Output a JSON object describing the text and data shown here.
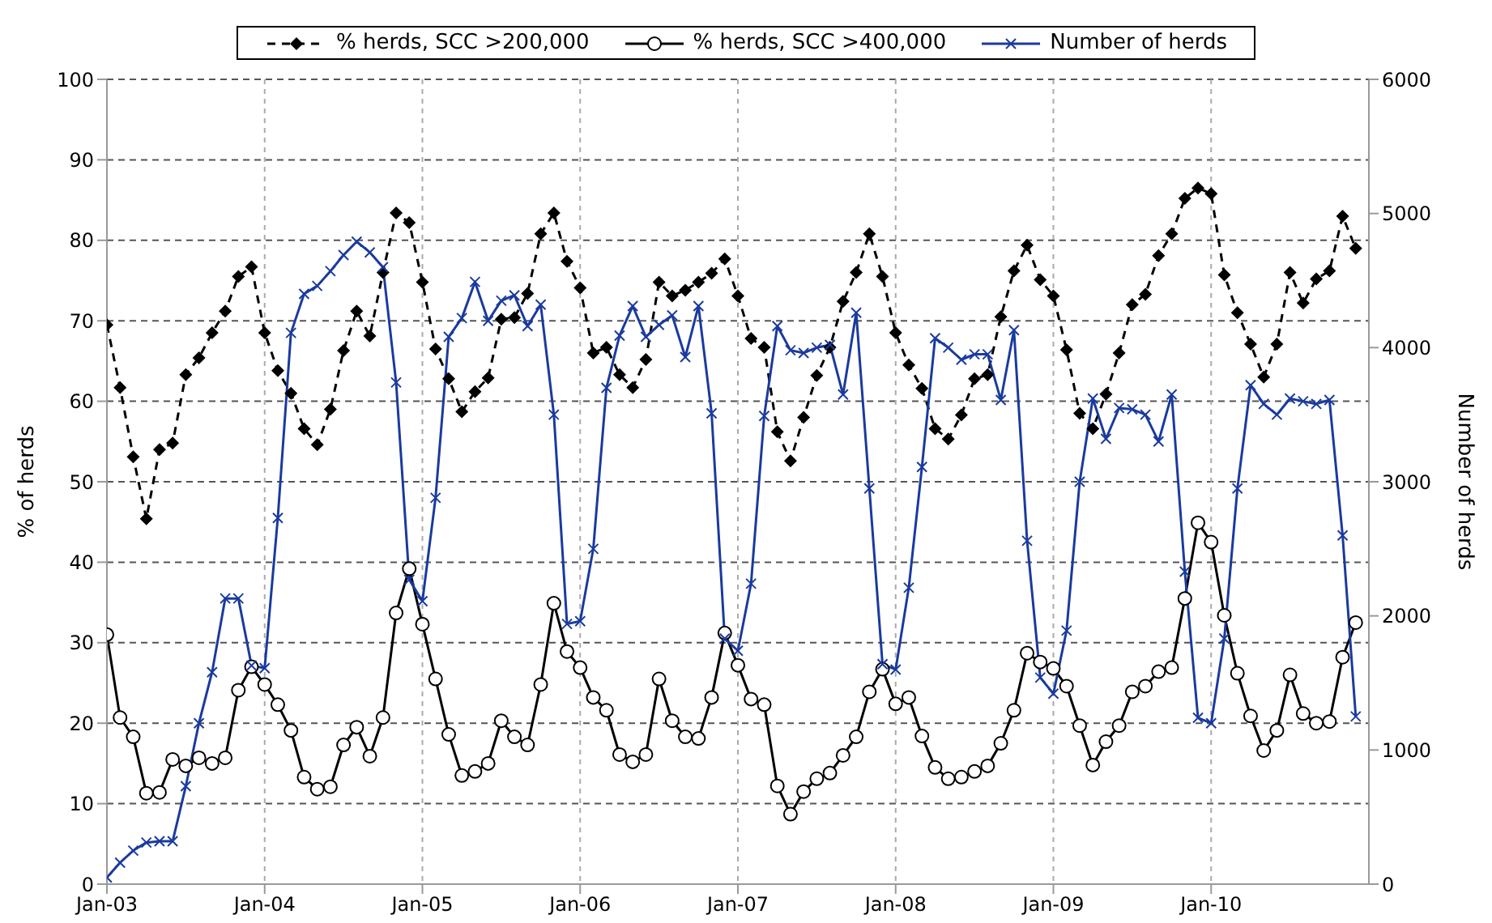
{
  "chart_data": {
    "type": "line",
    "ylabel": "% of herds",
    "y2label": "Number of herds",
    "x": [
      "2003-01",
      "2003-02",
      "2003-03",
      "2003-04",
      "2003-05",
      "2003-06",
      "2003-07",
      "2003-08",
      "2003-09",
      "2003-10",
      "2003-11",
      "2003-12",
      "2004-01",
      "2004-02",
      "2004-03",
      "2004-04",
      "2004-05",
      "2004-06",
      "2004-07",
      "2004-08",
      "2004-09",
      "2004-10",
      "2004-11",
      "2004-12",
      "2005-01",
      "2005-02",
      "2005-03",
      "2005-04",
      "2005-05",
      "2005-06",
      "2005-07",
      "2005-08",
      "2005-09",
      "2005-10",
      "2005-11",
      "2005-12",
      "2006-01",
      "2006-02",
      "2006-03",
      "2006-04",
      "2006-05",
      "2006-06",
      "2006-07",
      "2006-08",
      "2006-09",
      "2006-10",
      "2006-11",
      "2006-12",
      "2007-01",
      "2007-02",
      "2007-03",
      "2007-04",
      "2007-05",
      "2007-06",
      "2007-07",
      "2007-08",
      "2007-09",
      "2007-10",
      "2007-11",
      "2007-12",
      "2008-01",
      "2008-02",
      "2008-03",
      "2008-04",
      "2008-05",
      "2008-06",
      "2008-07",
      "2008-08",
      "2008-09",
      "2008-10",
      "2008-11",
      "2008-12",
      "2009-01",
      "2009-02",
      "2009-03",
      "2009-04",
      "2009-05",
      "2009-06",
      "2009-07",
      "2009-08",
      "2009-09",
      "2009-10",
      "2009-11",
      "2009-12",
      "2010-01",
      "2010-02",
      "2010-03",
      "2010-04",
      "2010-05",
      "2010-06",
      "2010-07",
      "2010-08",
      "2010-09",
      "2010-10",
      "2010-11",
      "2010-12"
    ],
    "series": [
      {
        "name": "% herds, SCC >200,000",
        "color": "#000000",
        "marker": "diamond",
        "line_style": "dashed",
        "values": [
          69.5,
          61.7,
          53.1,
          45.4,
          54,
          54.8,
          63.3,
          65.4,
          68.5,
          71.2,
          75.5,
          76.7,
          68.5,
          63.8,
          61,
          56.6,
          54.6,
          59,
          66.3,
          71.2,
          68.1,
          76,
          83.4,
          82.2,
          74.8,
          66.5,
          62.8,
          58.7,
          61.2,
          62.9,
          70.2,
          70.4,
          73.4,
          80.8,
          83.4,
          77.4,
          74.1,
          66,
          66.7,
          63.3,
          61.7,
          65.2,
          74.8,
          73.1,
          73.8,
          74.8,
          75.9,
          77.7,
          73.1,
          67.8,
          66.7,
          56.2,
          52.6,
          58,
          63.2,
          66.7,
          72.4,
          76,
          80.8,
          75.5,
          68.5,
          64.5,
          61.6,
          56.6,
          55.3,
          58.3,
          62.8,
          63.3,
          70.5,
          76.2,
          79.4,
          75.1,
          73.1,
          66.4,
          58.5,
          56.6,
          60.9,
          66,
          72,
          73.3,
          78.1,
          80.8,
          85.2,
          86.5,
          85.8,
          75.7,
          71,
          67.1,
          63,
          67.1,
          76,
          72.2,
          75.2,
          76.2,
          83,
          79
        ]
      },
      {
        "name": "% herds, SCC >400,000",
        "color": "#000000",
        "marker": "circle",
        "line_style": "solid",
        "values": [
          31,
          20.7,
          18.3,
          11.3,
          11.4,
          15.5,
          14.7,
          15.7,
          15,
          15.7,
          24.1,
          27,
          24.8,
          22.3,
          19.1,
          13.3,
          11.8,
          12.1,
          17.3,
          19.5,
          15.9,
          20.7,
          33.7,
          39.2,
          32.3,
          25.5,
          18.6,
          13.5,
          14,
          15,
          20.3,
          18.3,
          17.3,
          24.8,
          34.9,
          28.9,
          26.9,
          23.2,
          21.6,
          16.1,
          15.2,
          16.1,
          25.5,
          20.3,
          18.3,
          18.1,
          23.2,
          31.2,
          27.2,
          23,
          22.3,
          12.2,
          8.7,
          11.5,
          13.1,
          13.8,
          16,
          18.3,
          23.9,
          26.7,
          22.4,
          23.2,
          18.4,
          14.5,
          13.1,
          13.3,
          14,
          14.7,
          17.5,
          21.6,
          28.7,
          27.6,
          26.8,
          24.6,
          19.7,
          14.8,
          17.7,
          19.7,
          23.9,
          24.6,
          26.4,
          26.9,
          35.5,
          44.9,
          42.5,
          33.4,
          26.2,
          20.9,
          16.6,
          19.1,
          26,
          21.2,
          20,
          20.2,
          28.2,
          32.5
        ]
      },
      {
        "name": "Number of herds",
        "color": "#1a3a9e",
        "marker": "cross",
        "line_style": "solid",
        "axis": "y2",
        "values": [
          50,
          160,
          250,
          310,
          320,
          320,
          730,
          1200,
          1580,
          2130,
          2130,
          1630,
          1610,
          2730,
          4110,
          4400,
          4460,
          4570,
          4690,
          4790,
          4710,
          4600,
          3740,
          2270,
          2110,
          2880,
          4080,
          4220,
          4490,
          4200,
          4350,
          4390,
          4160,
          4320,
          3500,
          1940,
          1960,
          2500,
          3700,
          4090,
          4310,
          4080,
          4170,
          4240,
          3930,
          4310,
          3510,
          1830,
          1740,
          2240,
          3490,
          4160,
          3980,
          3960,
          4000,
          4020,
          3650,
          4260,
          2950,
          1640,
          1600,
          2210,
          3110,
          4070,
          4000,
          3910,
          3950,
          3950,
          3610,
          4130,
          2560,
          1540,
          1420,
          1890,
          3000,
          3620,
          3320,
          3550,
          3540,
          3500,
          3300,
          3650,
          2330,
          1240,
          1200,
          1830,
          2950,
          3720,
          3580,
          3500,
          3620,
          3600,
          3580,
          3610,
          2600,
          1250
        ]
      }
    ],
    "xlim": [
      "2003-01",
      "2011-01"
    ],
    "xticks": [
      {
        "value": "2003-01",
        "label": "Jan-03"
      },
      {
        "value": "2004-01",
        "label": "Jan-04"
      },
      {
        "value": "2005-01",
        "label": "Jan-05"
      },
      {
        "value": "2006-01",
        "label": "Jan-06"
      },
      {
        "value": "2007-01",
        "label": "Jan-07"
      },
      {
        "value": "2008-01",
        "label": "Jan-08"
      },
      {
        "value": "2009-01",
        "label": "Jan-09"
      },
      {
        "value": "2010-01",
        "label": "Jan-10"
      }
    ],
    "ylim": [
      0,
      100
    ],
    "yticks": [
      0,
      10,
      20,
      30,
      40,
      50,
      60,
      70,
      80,
      90,
      100
    ],
    "y2lim": [
      0,
      6000
    ],
    "y2ticks": [
      0,
      1000,
      2000,
      3000,
      4000,
      5000,
      6000
    ],
    "grid": true,
    "legend": "top"
  }
}
